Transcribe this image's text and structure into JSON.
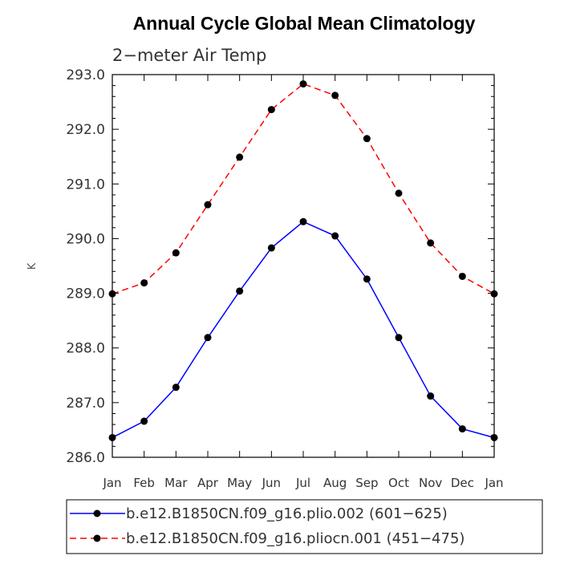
{
  "chart_data": {
    "type": "line",
    "title": "Annual Cycle Global Mean Climatology",
    "subtitle": "2−meter Air Temp",
    "xlabel": "",
    "ylabel": "K",
    "categories": [
      "Jan",
      "Feb",
      "Mar",
      "Apr",
      "May",
      "Jun",
      "Jul",
      "Aug",
      "Sep",
      "Oct",
      "Nov",
      "Dec",
      "Jan"
    ],
    "ylim": [
      286.0,
      293.0
    ],
    "yticks": [
      "286.0",
      "287.0",
      "288.0",
      "289.0",
      "290.0",
      "291.0",
      "292.0",
      "293.0"
    ],
    "grid": false,
    "legend_position": "bottom",
    "series": [
      {
        "name": "b.e12.B1850CN.f09_g16.plio.002 (601−625)",
        "color": "#0000ff",
        "dash": "solid",
        "values": [
          286.36,
          286.66,
          287.28,
          288.19,
          289.04,
          289.83,
          290.31,
          290.05,
          289.26,
          288.19,
          287.12,
          286.52,
          286.36
        ]
      },
      {
        "name": "b.e12.B1850CN.f09_g16.pliocn.001 (451−475)",
        "color": "#ff0000",
        "dash": "dashed",
        "values": [
          288.99,
          289.19,
          289.74,
          290.62,
          291.49,
          292.36,
          292.83,
          292.62,
          291.83,
          290.83,
          289.92,
          289.31,
          288.99
        ]
      }
    ]
  }
}
